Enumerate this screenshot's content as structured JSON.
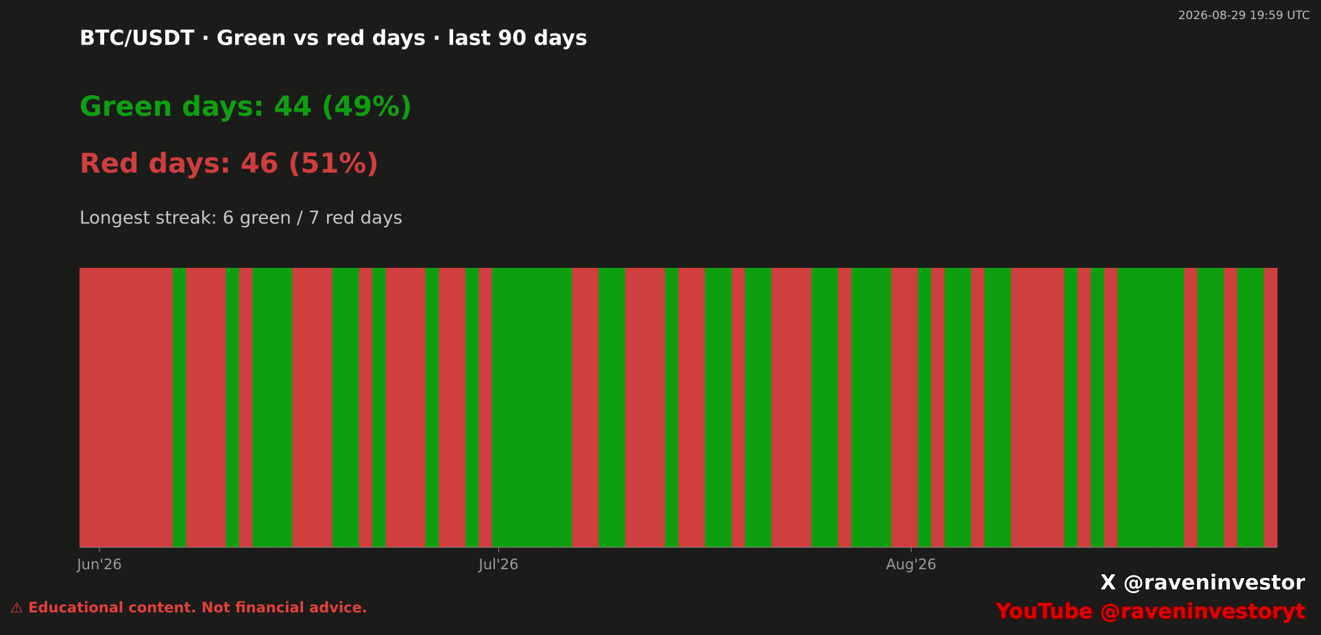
{
  "chart_data": {
    "type": "strip",
    "timestamp": "2026-08-29 19:59 UTC",
    "title": "BTC/USDT · Green vs red days · last 90 days",
    "green_summary": "Green days: 44  (49%)",
    "red_summary": "Red days: 46  (51%)",
    "streak": "Longest streak: 6 green / 7 red days",
    "values": [
      -1,
      -1,
      -1,
      -1,
      -1,
      -1,
      -1,
      1,
      -1,
      -1,
      -1,
      1,
      -1,
      1,
      1,
      1,
      -1,
      -1,
      -1,
      1,
      1,
      -1,
      1,
      -1,
      -1,
      -1,
      1,
      -1,
      -1,
      1,
      -1,
      1,
      1,
      1,
      1,
      1,
      1,
      -1,
      -1,
      1,
      1,
      -1,
      -1,
      -1,
      1,
      -1,
      -1,
      1,
      1,
      -1,
      1,
      1,
      -1,
      -1,
      -1,
      1,
      1,
      -1,
      1,
      1,
      1,
      -1,
      -1,
      1,
      -1,
      1,
      1,
      -1,
      1,
      1,
      -1,
      -1,
      -1,
      -1,
      1,
      -1,
      1,
      -1,
      1,
      1,
      1,
      1,
      1,
      -1,
      1,
      1,
      -1,
      1,
      1,
      -1
    ],
    "up_color": "#0e9f10",
    "down_color": "#cf3e3e",
    "xticks": [
      {
        "value": 1,
        "label": "Jun'26"
      },
      {
        "value": 31,
        "label": "Jul'26"
      },
      {
        "value": 62,
        "label": "Aug'26"
      }
    ],
    "disclaimer": "⚠  Educational content. Not financial advice.",
    "social_x": "X   @raveninvestor",
    "social_youtube": "YouTube   @raveninvestoryt"
  }
}
